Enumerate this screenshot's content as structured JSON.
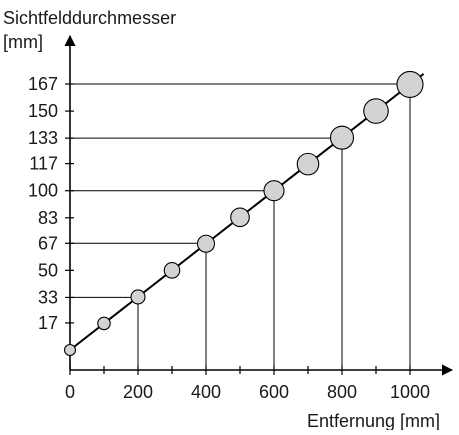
{
  "chart_data": {
    "type": "scatter",
    "title": "",
    "ylabel_line1": "Sichtfelddurchmesser",
    "ylabel_line2": "[mm]",
    "xlabel": "Entfernung [mm]",
    "xlim": [
      0,
      1000
    ],
    "ylim": [
      0,
      167
    ],
    "x_ticks": [
      0,
      200,
      400,
      600,
      800,
      1000
    ],
    "x_minor_ticks": [
      100,
      300,
      500,
      700,
      900
    ],
    "y_ticks": [
      17,
      33,
      50,
      67,
      83,
      100,
      117,
      133,
      150,
      167
    ],
    "grid": false,
    "series": [
      {
        "x": [
          0,
          100,
          200,
          300,
          400,
          500,
          600,
          700,
          800,
          900,
          1000
        ],
        "y": [
          0,
          16.7,
          33.3,
          50,
          66.7,
          83.3,
          100,
          116.7,
          133.3,
          150,
          166.7
        ]
      }
    ],
    "reference_points": [
      {
        "x": 200,
        "y": 33
      },
      {
        "x": 400,
        "y": 67
      },
      {
        "x": 600,
        "y": 100
      },
      {
        "x": 800,
        "y": 133
      },
      {
        "x": 1000,
        "y": 167
      }
    ],
    "colors": {
      "marker_fill": "#d3d3d3",
      "line": "#000000"
    }
  }
}
